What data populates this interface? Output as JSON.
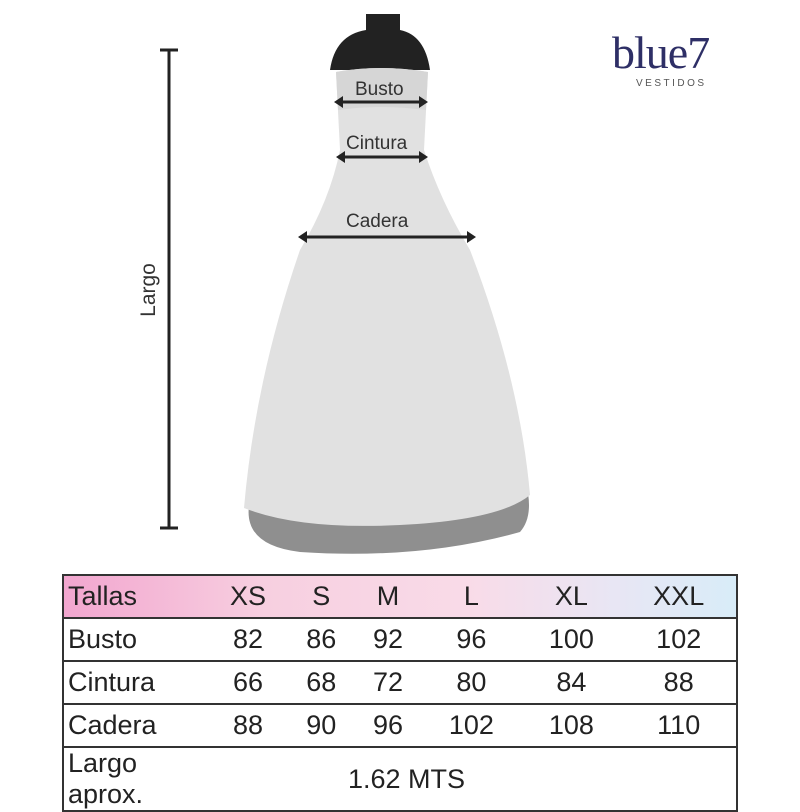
{
  "brand": {
    "name": "blue7",
    "tagline": "VESTIDOS",
    "color": "#2e2f66"
  },
  "diagram": {
    "labels": {
      "bust": "Busto",
      "waist": "Cintura",
      "hip": "Cadera",
      "length": "Largo"
    }
  },
  "size_table": {
    "header": [
      "Tallas",
      "XS",
      "S",
      "M",
      "L",
      "XL",
      "XXL"
    ],
    "rows": [
      {
        "label": "Busto",
        "values": [
          "82",
          "86",
          "92",
          "96",
          "100",
          "102"
        ]
      },
      {
        "label": "Cintura",
        "values": [
          "66",
          "68",
          "72",
          "80",
          "84",
          "88"
        ]
      },
      {
        "label": "Cadera",
        "values": [
          "88",
          "90",
          "96",
          "102",
          "108",
          "110"
        ]
      }
    ],
    "length_row": {
      "label": "Largo aprox.",
      "value": "1.62 MTS"
    }
  }
}
